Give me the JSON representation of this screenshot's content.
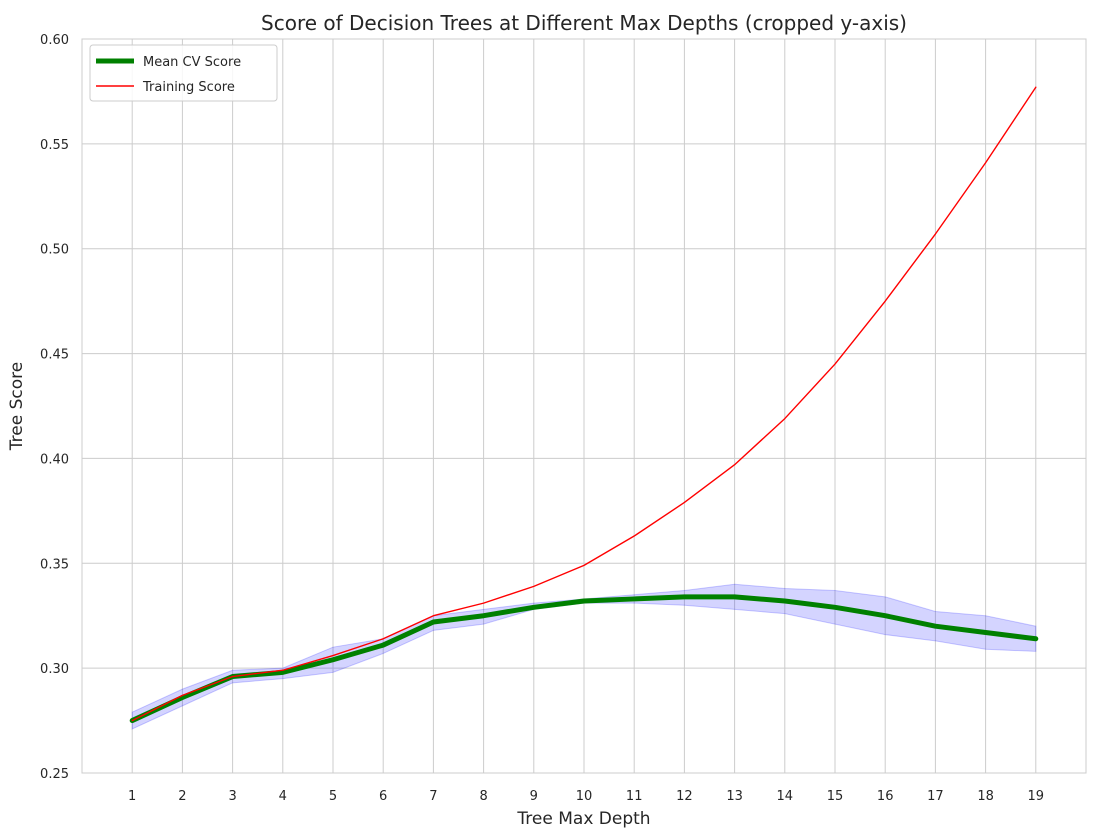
{
  "chart_data": {
    "type": "line",
    "title": "Score of Decision Trees at Different Max Depths (cropped y-axis)",
    "xlabel": "Tree Max Depth",
    "ylabel": "Tree Score",
    "x": [
      1,
      2,
      3,
      4,
      5,
      6,
      7,
      8,
      9,
      10,
      11,
      12,
      13,
      14,
      15,
      16,
      17,
      18,
      19
    ],
    "xticks": [
      "1",
      "2",
      "3",
      "4",
      "5",
      "6",
      "7",
      "8",
      "9",
      "10",
      "11",
      "12",
      "13",
      "14",
      "15",
      "16",
      "17",
      "18",
      "19"
    ],
    "ylim": [
      0.25,
      0.6
    ],
    "yticks": [
      "0.25",
      "0.30",
      "0.35",
      "0.40",
      "0.45",
      "0.50",
      "0.55",
      "0.60"
    ],
    "grid": true,
    "legend_position": "top-left",
    "series": [
      {
        "name": "Mean CV Score",
        "color": "#008000",
        "values": [
          0.275,
          0.286,
          0.296,
          0.298,
          0.304,
          0.311,
          0.322,
          0.325,
          0.329,
          0.332,
          0.333,
          0.334,
          0.334,
          0.332,
          0.329,
          0.325,
          0.32,
          0.317,
          0.314
        ],
        "band_lower": [
          0.271,
          0.282,
          0.293,
          0.295,
          0.298,
          0.307,
          0.318,
          0.321,
          0.328,
          0.331,
          0.331,
          0.33,
          0.328,
          0.326,
          0.321,
          0.316,
          0.313,
          0.309,
          0.308
        ],
        "band_upper": [
          0.279,
          0.29,
          0.299,
          0.3,
          0.31,
          0.314,
          0.325,
          0.328,
          0.331,
          0.333,
          0.335,
          0.337,
          0.34,
          0.338,
          0.337,
          0.334,
          0.327,
          0.325,
          0.32
        ],
        "band_color": "#0000ff"
      },
      {
        "name": "Training Score",
        "color": "#ff0000",
        "values": [
          0.275,
          0.287,
          0.296,
          0.299,
          0.306,
          0.314,
          0.325,
          0.331,
          0.339,
          0.349,
          0.363,
          0.379,
          0.397,
          0.419,
          0.445,
          0.475,
          0.507,
          0.541,
          0.577
        ]
      }
    ]
  }
}
